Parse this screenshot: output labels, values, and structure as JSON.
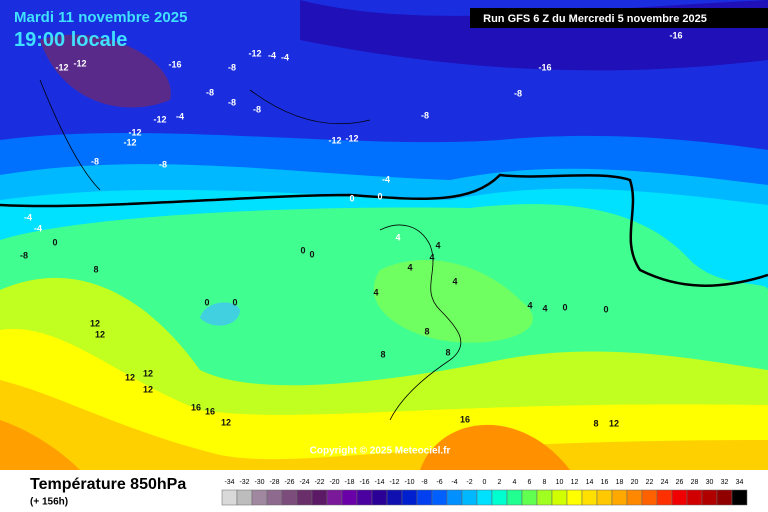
{
  "map": {
    "date": "Mardi 11 novembre 2025",
    "time": "19:00 locale",
    "run": "Run GFS 6 Z du Mercredi 5 novembre 2025",
    "copyright": "Copyright © 2025 Meteociel.fr",
    "variable": "Température 850hPa",
    "lead": "(+ 156h)",
    "contour_labels": [
      -12,
      -12,
      -16,
      -8,
      -12,
      -4,
      -4,
      -8,
      -8,
      -12,
      -4,
      -12,
      -12,
      -8,
      -12,
      -12,
      -8,
      -8,
      -8,
      -16,
      -16,
      -8,
      -4,
      0,
      0,
      -4,
      -4,
      -8,
      0,
      0,
      0,
      0,
      0,
      4,
      4,
      4,
      4,
      8,
      8,
      4,
      4,
      12,
      12,
      12,
      12,
      12,
      16,
      16,
      12,
      8,
      8,
      8,
      12,
      16,
      4,
      4,
      0,
      0
    ],
    "scale": {
      "values": [
        -34,
        -32,
        -30,
        -28,
        -26,
        -24,
        -22,
        -20,
        -18,
        -16,
        -14,
        -12,
        -10,
        -8,
        -6,
        -4,
        -2,
        0,
        2,
        4,
        6,
        8,
        10,
        12,
        14,
        16,
        18,
        20,
        22,
        24,
        26,
        28,
        30,
        32,
        34
      ],
      "colors": [
        "#d9d9d9",
        "#bdbdbd",
        "#a088a0",
        "#8e6a8e",
        "#7c4c7c",
        "#6a2e6a",
        "#5c1a66",
        "#7a1a9a",
        "#6a00a8",
        "#4b00a0",
        "#2a0096",
        "#1010b0",
        "#0020d0",
        "#0040f0",
        "#0060ff",
        "#0090ff",
        "#00b8ff",
        "#00e0ff",
        "#00ffd0",
        "#20ff90",
        "#60ff50",
        "#a0ff20",
        "#d0ff00",
        "#ffff00",
        "#ffe000",
        "#ffc800",
        "#ffa800",
        "#ff8800",
        "#ff6000",
        "#ff3000",
        "#f00000",
        "#d00000",
        "#b00000",
        "#900000",
        "#000000"
      ]
    }
  }
}
